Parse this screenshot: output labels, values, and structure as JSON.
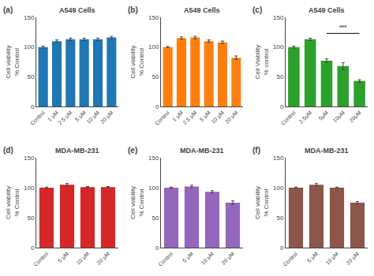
{
  "chart_data": [
    {
      "type": "bar",
      "label": "(a)",
      "title": "A549 Cells",
      "ylabel": "Cell viability\n% Control",
      "categories": [
        "Control",
        "1 μM",
        "2.5 μM",
        "5 μM",
        "10 μM",
        "20 μM"
      ],
      "values": [
        100,
        110,
        113,
        113,
        113,
        116
      ],
      "errors": [
        1.5,
        2,
        2,
        2,
        2,
        2
      ],
      "ylim": [
        0,
        150
      ],
      "yticks": [
        0,
        50,
        100,
        150
      ],
      "grid": false
    },
    {
      "type": "bar",
      "label": "(b)",
      "title": "A549 Cells",
      "ylabel": "Cell viability\n% Control",
      "categories": [
        "Control",
        "1 μM",
        "2.5 μM",
        "5 μM",
        "10 μM",
        "20 μM"
      ],
      "values": [
        100,
        115,
        116,
        110,
        108,
        82
      ],
      "errors": [
        1,
        2,
        2,
        2,
        2,
        3
      ],
      "ylim": [
        0,
        150
      ],
      "yticks": [
        0,
        50,
        100,
        150
      ],
      "grid": false
    },
    {
      "type": "bar",
      "label": "(c)",
      "title": "A549 Cells",
      "ylabel": "Cell Viability\n% control",
      "categories": [
        "Control",
        "2.5μM",
        "5μM",
        "10μM",
        "20μM"
      ],
      "values": [
        100,
        113,
        77,
        68,
        43
      ],
      "errors": [
        1.5,
        2,
        3,
        6,
        2
      ],
      "ylim": [
        0,
        150
      ],
      "yticks": [
        0,
        50,
        100,
        150
      ],
      "grid": false,
      "annotations": [
        {
          "text": "***",
          "x": [
            "5μM",
            "20μM"
          ],
          "y": 123
        }
      ]
    },
    {
      "type": "bar",
      "label": "(d)",
      "title": "MDA-MB-231",
      "ylabel": "Cell viability\n% Control",
      "categories": [
        "Control",
        "5 μM",
        "10 μM",
        "20 μM"
      ],
      "values": [
        100,
        105,
        101,
        101
      ],
      "errors": [
        1,
        2,
        1,
        1
      ],
      "ylim": [
        0,
        150
      ],
      "yticks": [
        0,
        50,
        100,
        150
      ],
      "grid": false
    },
    {
      "type": "bar",
      "label": "(e)",
      "title": "MDA-MB-231",
      "ylabel": "Cell viability\n% Control",
      "categories": [
        "Control",
        "5 μM",
        "10 μM",
        "20 μM"
      ],
      "values": [
        100,
        102,
        93,
        75
      ],
      "errors": [
        1,
        2,
        2,
        3
      ],
      "ylim": [
        0,
        150
      ],
      "yticks": [
        0,
        50,
        100,
        150
      ],
      "grid": false
    },
    {
      "type": "bar",
      "label": "(f)",
      "title": "MDA-MB-231",
      "ylabel": "Cell viability\n% Control",
      "categories": [
        "Control",
        "5 μM",
        "10 μM",
        "20 μM"
      ],
      "values": [
        100,
        105,
        100,
        75
      ],
      "errors": [
        1,
        2,
        1,
        2
      ],
      "ylim": [
        0,
        150
      ],
      "yticks": [
        0,
        50,
        100,
        150
      ],
      "grid": false
    }
  ]
}
